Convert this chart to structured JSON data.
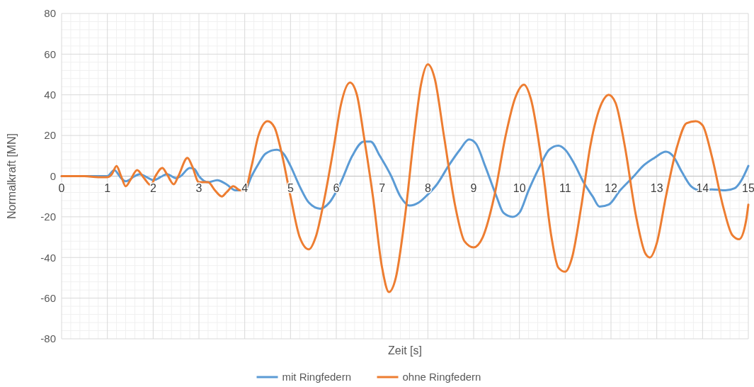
{
  "chart_data": {
    "type": "line",
    "xlabel": "Zeit [s]",
    "ylabel": "Normalkraft [MN]",
    "xlim": [
      0,
      15
    ],
    "xticks": [
      0,
      1,
      2,
      3,
      4,
      5,
      6,
      7,
      8,
      9,
      10,
      11,
      12,
      13,
      14,
      15
    ],
    "ylim": [
      -80,
      80
    ],
    "yticks": [
      -80,
      -60,
      -40,
      -20,
      0,
      20,
      40,
      60,
      80
    ],
    "grid": true,
    "legend": "bottom",
    "marker": "none",
    "line_style": "solid",
    "series": [
      {
        "name": "mit Ringfedern",
        "color": "#5b9bd5",
        "x": [
          0,
          0.8,
          1.0,
          1.15,
          1.3,
          1.4,
          1.6,
          1.7,
          1.9,
          2.0,
          2.2,
          2.3,
          2.5,
          2.6,
          2.8,
          2.9,
          3.0,
          3.2,
          3.4,
          3.6,
          3.8,
          4.0,
          4.15,
          4.3,
          4.45,
          4.7,
          4.85,
          5.0,
          5.2,
          5.4,
          5.65,
          5.85,
          6.1,
          6.35,
          6.6,
          6.75,
          6.95,
          7.2,
          7.4,
          7.6,
          7.8,
          8.0,
          8.2,
          8.45,
          8.7,
          8.9,
          9.05,
          9.25,
          9.5,
          9.65,
          9.85,
          10.0,
          10.2,
          10.45,
          10.65,
          10.85,
          11.0,
          11.2,
          11.4,
          11.6,
          11.75,
          11.95,
          12.2,
          12.5,
          12.7,
          12.95,
          13.2,
          13.35,
          13.55,
          13.75,
          13.95,
          14.2,
          14.5,
          14.7,
          14.85,
          15.0
        ],
        "values": [
          0,
          0,
          0,
          3,
          -1,
          -2.5,
          0,
          1,
          -1,
          -2,
          0,
          1,
          -1,
          0,
          4,
          3.5,
          0,
          -3,
          -2,
          -4,
          -7,
          -7,
          0,
          6,
          11,
          13,
          11,
          5,
          -5,
          -13,
          -16,
          -13,
          -3,
          10,
          17,
          17,
          10,
          0,
          -10,
          -14.5,
          -13,
          -9,
          -4,
          5,
          13,
          18,
          16,
          5,
          -10,
          -18,
          -20,
          -18,
          -7,
          5,
          13,
          15,
          13,
          6,
          -3,
          -10,
          -15,
          -14,
          -7,
          0,
          5,
          9,
          12,
          10,
          2,
          -5,
          -7,
          -6.5,
          -7,
          -6,
          -2,
          5
        ]
      },
      {
        "name": "ohne Ringfedern",
        "color": "#ed7d31",
        "x": [
          0,
          0.5,
          0.8,
          1.0,
          1.1,
          1.2,
          1.3,
          1.4,
          1.5,
          1.65,
          1.8,
          1.95,
          2.05,
          2.2,
          2.3,
          2.45,
          2.55,
          2.75,
          2.85,
          3.0,
          3.2,
          3.35,
          3.5,
          3.6,
          3.75,
          3.9,
          4.0,
          4.15,
          4.3,
          4.5,
          4.65,
          4.8,
          5.0,
          5.2,
          5.4,
          5.55,
          5.75,
          5.95,
          6.1,
          6.3,
          6.45,
          6.6,
          6.8,
          7.0,
          7.15,
          7.3,
          7.5,
          7.7,
          7.85,
          8.0,
          8.15,
          8.35,
          8.6,
          8.8,
          9.0,
          9.2,
          9.45,
          9.7,
          9.9,
          10.1,
          10.25,
          10.5,
          10.7,
          10.85,
          11.0,
          11.15,
          11.35,
          11.55,
          11.8,
          11.95,
          12.1,
          12.3,
          12.55,
          12.75,
          12.85,
          13.0,
          13.2,
          13.45,
          13.65,
          13.85,
          14.0,
          14.2,
          14.45,
          14.65,
          14.8,
          14.95,
          15.0
        ],
        "values": [
          0,
          0,
          -0.5,
          -0.5,
          1,
          5,
          0,
          -5,
          -2,
          3,
          -1,
          -4.5,
          0,
          4,
          1,
          -4,
          0,
          9,
          5,
          -3,
          -3,
          -7,
          -10,
          -8,
          -5,
          -7,
          -7,
          5,
          20,
          27,
          24,
          12,
          -10,
          -30,
          -36,
          -30,
          -10,
          15,
          35,
          46,
          40,
          20,
          -10,
          -45,
          -57,
          -50,
          -20,
          20,
          45,
          55,
          48,
          20,
          -15,
          -32,
          -35,
          -30,
          -10,
          20,
          38,
          45,
          38,
          5,
          -30,
          -45,
          -47,
          -40,
          -15,
          15,
          36,
          40,
          36,
          15,
          -20,
          -38,
          -40,
          -33,
          -10,
          15,
          26,
          27,
          25,
          10,
          -15,
          -29,
          -31,
          -22,
          -14
        ]
      }
    ]
  }
}
